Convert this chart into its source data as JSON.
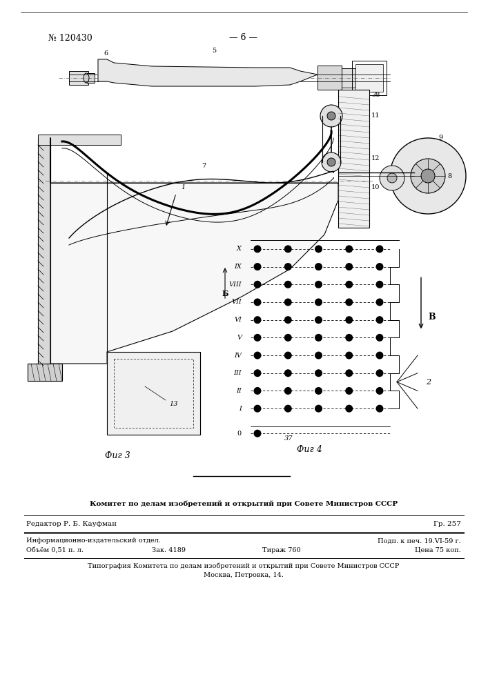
{
  "bg_color": "#ffffff",
  "header_patent": "№ 120430",
  "header_page": "— 6 —",
  "fig3_label": "Фиг 3",
  "fig4_label": "Фиг 4",
  "footer_title": "Комитет по делам изобретений и открытий при Совете Министров СССР",
  "footer_editor_left": "Редактор Р. Б. Кауфман",
  "footer_editor_right": "Гр. 257",
  "footer_info1_left": "Информационно-издательский отдел.",
  "footer_info1_right": "Подп. к печ. 19.VI-59 г.",
  "footer_info2_col1": "Объём 0,51 п. л.",
  "footer_info2_col2": "Зак. 4189",
  "footer_info2_col3": "Тираж 760",
  "footer_info2_col4": "Цена 75 коп.",
  "footer_print1": "Типография Комитета по делам изобретений и открытий при Совете Министров СССР",
  "footer_print2": "Москва, Петровка, 14.",
  "label_B_arrow": "B",
  "label_B_left": "Б",
  "label_0": "0",
  "label_37": "37",
  "label_2": "2",
  "label_11": "11",
  "label_12": "12",
  "label_9": "9",
  "label_8": "8",
  "label_10": "10",
  "label_38": "38",
  "label_13": "13",
  "label_6": "6",
  "label_5": "5",
  "label_7": "7",
  "label_1": "1"
}
